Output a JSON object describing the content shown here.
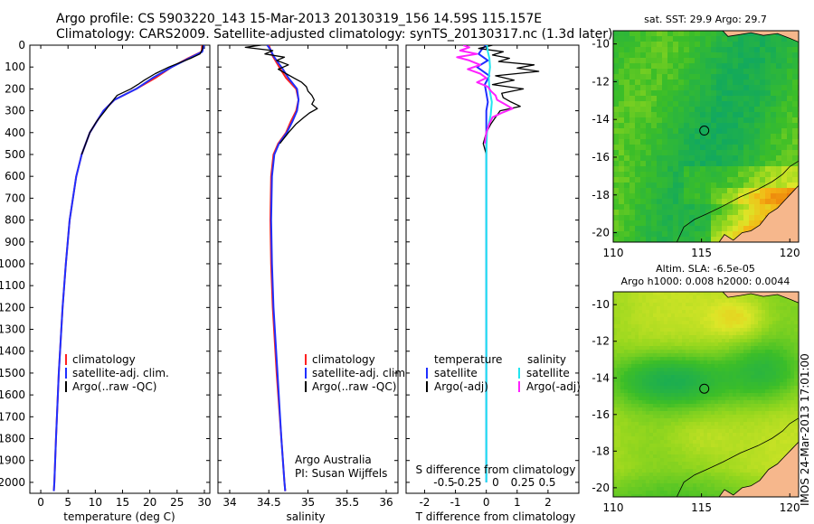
{
  "title": {
    "line1": "Argo profile: CS 5903220_143 15-Mar-2013 20130319_156 14.59S 115.157E",
    "line2": "Climatology: CARS2009. Satellite-adjusted climatology: synTS_20130317.nc (1.3d later)"
  },
  "stamp": "IMOS 24-Mar-2013 17:01:00",
  "colors": {
    "climatology": "#ff2020",
    "satellite": "#1f2fff",
    "argo": "#000000",
    "sat_salinity": "#22e5f0",
    "argo_salinity_adj": "#ff22ff"
  },
  "chart_data": [
    {
      "type": "line",
      "panel": "temperature",
      "xlabel": "temperature (deg C)",
      "xlim": [
        -2,
        31
      ],
      "xticks": [
        0,
        5,
        10,
        15,
        20,
        25,
        30
      ],
      "xtick_labels": [
        "0",
        "5",
        "10",
        "15",
        "20",
        "25",
        "30"
      ],
      "ylim": [
        0,
        2050
      ],
      "yticks": [
        0,
        100,
        200,
        300,
        400,
        500,
        600,
        700,
        800,
        900,
        1000,
        1100,
        1200,
        1300,
        1400,
        1500,
        1600,
        1700,
        1800,
        1900,
        2000
      ],
      "ytick_labels": [
        "0",
        "100",
        "200",
        "300",
        "400",
        "500",
        "600",
        "700",
        "800",
        "900",
        "1000",
        "1100",
        "1200",
        "1300",
        "1400",
        "1500",
        "1600",
        "1700",
        "1800",
        "1900",
        "2000"
      ],
      "legend": [
        "climatology",
        "satellite-adj. clim.",
        "Argo(..raw -QC)"
      ],
      "series": [
        {
          "name": "climatology",
          "color": "#ff2020",
          "depth": [
            0,
            30,
            60,
            100,
            150,
            200,
            250,
            300,
            400,
            500,
            600,
            800,
            1000,
            1200,
            1500,
            1800,
            2000,
            2040
          ],
          "values": [
            29.6,
            29.5,
            27,
            24,
            21,
            17.5,
            13.5,
            11.5,
            9,
            7.5,
            6.5,
            5.3,
            4.6,
            4.0,
            3.3,
            2.8,
            2.5,
            2.4
          ]
        },
        {
          "name": "satellite-adj. clim.",
          "color": "#1f2fff",
          "depth": [
            0,
            30,
            60,
            100,
            150,
            200,
            250,
            300,
            400,
            500,
            600,
            800,
            1000,
            1200,
            1500,
            1800,
            2000,
            2040
          ],
          "values": [
            29.9,
            29.6,
            27.2,
            24,
            20.5,
            17.5,
            13.5,
            11.5,
            9,
            7.5,
            6.5,
            5.3,
            4.6,
            4.0,
            3.3,
            2.8,
            2.5,
            2.4
          ]
        },
        {
          "name": "Argo(..raw -QC)",
          "color": "#000000",
          "depth": [
            0,
            20,
            40,
            60,
            80,
            100,
            130,
            160,
            180,
            200,
            230,
            260,
            300,
            350,
            400,
            500
          ],
          "values": [
            29.7,
            29.6,
            29.2,
            27.5,
            25.5,
            23.5,
            21.0,
            19.0,
            17.8,
            16.5,
            14.0,
            13.0,
            11.8,
            10.2,
            9.0,
            7.5
          ]
        }
      ]
    },
    {
      "type": "line",
      "panel": "salinity",
      "xlabel": "salinity",
      "xlim": [
        33.85,
        36.15
      ],
      "xticks": [
        34,
        34.5,
        35,
        35.5,
        36
      ],
      "xtick_labels": [
        "34",
        "34.5",
        "35",
        "35.5",
        "36"
      ],
      "ylim": [
        0,
        2050
      ],
      "legend": [
        "climatology",
        "satellite-adj. clim.",
        "Argo(..raw -QC)"
      ],
      "annotation": [
        "Argo Australia",
        "PI: Susan Wijffels"
      ],
      "series": [
        {
          "name": "climatology",
          "color": "#ff2020",
          "depth": [
            0,
            20,
            50,
            80,
            110,
            150,
            200,
            250,
            300,
            350,
            400,
            450,
            500,
            600,
            800,
            1000,
            1200,
            1500,
            1800,
            2000,
            2040
          ],
          "values": [
            34.5,
            34.52,
            34.55,
            34.6,
            34.65,
            34.72,
            34.85,
            34.88,
            34.85,
            34.78,
            34.72,
            34.62,
            34.56,
            34.53,
            34.52,
            34.53,
            34.55,
            34.6,
            34.66,
            34.7,
            34.71
          ]
        },
        {
          "name": "satellite-adj. clim.",
          "color": "#1f2fff",
          "depth": [
            0,
            20,
            50,
            80,
            110,
            150,
            200,
            250,
            300,
            350,
            400,
            450,
            500,
            600,
            800,
            1000,
            1200,
            1500,
            1800,
            2000,
            2040
          ],
          "values": [
            34.48,
            34.52,
            34.56,
            34.62,
            34.68,
            34.75,
            34.86,
            34.88,
            34.86,
            34.8,
            34.73,
            34.63,
            34.57,
            34.54,
            34.53,
            34.54,
            34.56,
            34.61,
            34.66,
            34.7,
            34.71
          ]
        },
        {
          "name": "Argo(..raw -QC)",
          "color": "#000000",
          "depth": [
            0,
            10,
            25,
            40,
            55,
            70,
            90,
            110,
            130,
            150,
            170,
            190,
            210,
            230,
            250,
            270,
            290,
            310,
            330,
            360,
            400,
            450
          ],
          "values": [
            34.4,
            34.2,
            34.55,
            34.45,
            34.7,
            34.6,
            34.75,
            34.62,
            34.72,
            34.82,
            34.92,
            34.98,
            35.0,
            35.05,
            35.08,
            35.05,
            35.12,
            35.02,
            34.95,
            34.85,
            34.75,
            34.64
          ]
        }
      ]
    },
    {
      "type": "line",
      "panel": "difference",
      "xlabel": "T difference from climatology",
      "xlabel_top": "S difference from climatology",
      "xlim": [
        -2.6,
        3.0
      ],
      "xticks": [
        -2,
        -1,
        0,
        1,
        2
      ],
      "xtick_labels": [
        "-2",
        "-1",
        "0",
        "1",
        "2"
      ],
      "sticks_labels": [
        "-0.5",
        "-0.25",
        "0",
        "0.25",
        "0.5"
      ],
      "ylim": [
        0,
        2050
      ],
      "legend": [
        "temperature",
        "satellite",
        "Argo(-adj)",
        "salinity",
        "satellite",
        "Argo(-adj)"
      ],
      "series": [
        {
          "name": "T satellite",
          "color": "#1f2fff",
          "depth": [
            0,
            20,
            40,
            70,
            100,
            140,
            180,
            220,
            260,
            300,
            400,
            500,
            800,
            1200,
            1600,
            2000
          ],
          "values": [
            0.0,
            -0.15,
            -0.25,
            0.05,
            -0.3,
            0.1,
            -0.05,
            0.0,
            0.05,
            0.0,
            0.0,
            0.0,
            0.0,
            0.0,
            0.0,
            0.0
          ]
        },
        {
          "name": "T Argo(-adj)",
          "color": "#000000",
          "depth": [
            0,
            15,
            30,
            45,
            60,
            75,
            90,
            105,
            120,
            140,
            160,
            180,
            200,
            220,
            240,
            260,
            280,
            300,
            330,
            360,
            400,
            450,
            500
          ],
          "values": [
            0.2,
            -0.25,
            0.55,
            0.2,
            0.75,
            0.4,
            1.55,
            1.0,
            1.7,
            0.3,
            0.9,
            0.2,
            1.2,
            0.5,
            0.55,
            0.8,
            1.1,
            0.45,
            0.3,
            0.15,
            0.0,
            -0.1,
            0.0
          ]
        },
        {
          "name": "S satellite",
          "color": "#22e5f0",
          "depth": [
            0,
            30,
            60,
            100,
            150,
            200,
            260,
            320,
            400,
            500,
            800,
            1200,
            1600,
            2000
          ],
          "values": [
            0.02,
            0.05,
            0.1,
            0.12,
            0.08,
            0.1,
            0.18,
            0.14,
            0.02,
            0.0,
            0.0,
            0.0,
            0.0,
            0.0
          ]
        },
        {
          "name": "S Argo(-adj)",
          "color": "#ff22ff",
          "depth": [
            0,
            10,
            25,
            40,
            55,
            70,
            90,
            110,
            130,
            150,
            170,
            190,
            210,
            230,
            250,
            270,
            290,
            310,
            330,
            360,
            400,
            450
          ],
          "values": [
            -0.75,
            -0.55,
            -0.85,
            -0.3,
            -0.95,
            -0.55,
            -0.2,
            -0.6,
            -0.2,
            0.0,
            -0.3,
            0.05,
            0.15,
            0.3,
            0.35,
            0.6,
            0.85,
            0.5,
            0.2,
            0.1,
            0.0,
            -0.05
          ]
        }
      ]
    },
    {
      "type": "heatmap",
      "panel": "sst-map",
      "title": "sat. SST: 29.9 Argo: 29.7",
      "xlim": [
        110,
        120.5
      ],
      "ylim": [
        -20.5,
        -9.3
      ],
      "xticks": [
        110,
        115,
        120
      ],
      "xtick_labels": [
        "110",
        "115",
        "120"
      ],
      "yticks": [
        -10,
        -12,
        -14,
        -16,
        -18,
        -20
      ],
      "ytick_labels": [
        "-10",
        "-12",
        "-14",
        "-16",
        "-18",
        "-20"
      ],
      "marker": {
        "lon": 115.157,
        "lat": -14.59
      }
    },
    {
      "type": "heatmap",
      "panel": "sla-map",
      "title": "Altim. SLA: -6.5e-05",
      "subtitle": "Argo h1000: 0.008 h2000: 0.0044",
      "xlim": [
        110,
        120.5
      ],
      "ylim": [
        -20.5,
        -9.3
      ],
      "xticks": [
        110,
        115,
        120
      ],
      "xtick_labels": [
        "110",
        "115",
        "120"
      ],
      "yticks": [
        -10,
        -12,
        -14,
        -16,
        -18,
        -20
      ],
      "ytick_labels": [
        "-10",
        "-12",
        "-14",
        "-16",
        "-18",
        "-20"
      ],
      "marker": {
        "lon": 115.157,
        "lat": -14.59
      }
    }
  ]
}
